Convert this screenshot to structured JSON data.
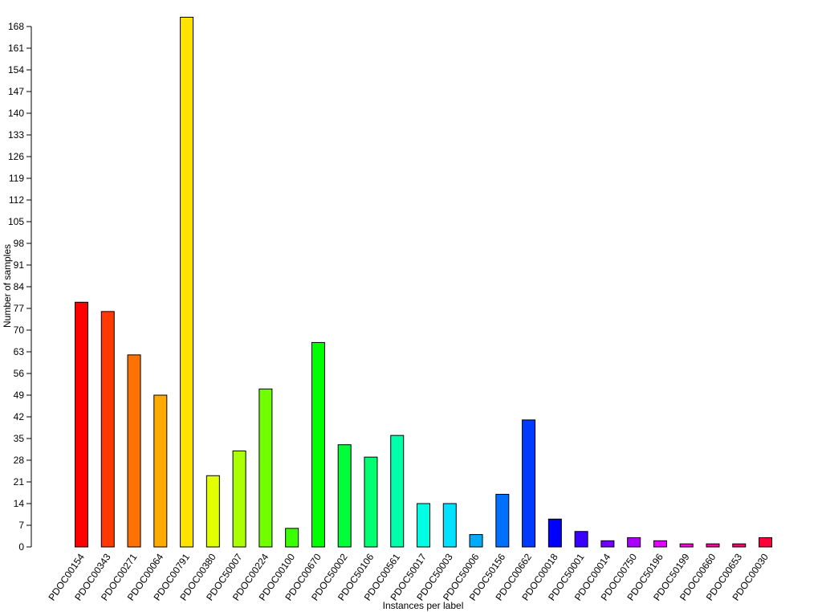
{
  "chart_data": {
    "type": "bar",
    "title": "",
    "xlabel": "Instances per label",
    "ylabel": "Number of samples",
    "ylim": [
      0,
      170
    ],
    "yticks": [
      0,
      7,
      14,
      21,
      28,
      35,
      42,
      49,
      56,
      63,
      70,
      77,
      84,
      91,
      98,
      105,
      112,
      119,
      126,
      133,
      140,
      147,
      154,
      161,
      168
    ],
    "grid": false,
    "legend": "none",
    "categories": [
      "PDOC00154",
      "PDOC00343",
      "PDOC00271",
      "PDOC00064",
      "PDOC00791",
      "PDOC00380",
      "PDOC50007",
      "PDOC00224",
      "PDOC00100",
      "PDOC00670",
      "PDOC50002",
      "PDOC50106",
      "PDOC00561",
      "PDOC50017",
      "PDOC50003",
      "PDOC50006",
      "PDOC50156",
      "PDOC00662",
      "PDOC00018",
      "PDOC50001",
      "PDOC00014",
      "PDOC00750",
      "PDOC50196",
      "PDOC50199",
      "PDOC00660",
      "PDOC00653",
      "PDOC00030"
    ],
    "values": [
      79,
      76,
      62,
      49,
      171,
      23,
      31,
      51,
      6,
      66,
      33,
      29,
      36,
      14,
      14,
      4,
      17,
      41,
      9,
      5,
      2,
      3,
      2,
      1,
      1,
      1,
      3
    ],
    "colors": [
      "#FF0000",
      "#FF3900",
      "#FF7100",
      "#FFAA00",
      "#FFE200",
      "#E2FF00",
      "#AAFF00",
      "#71FF00",
      "#39FF00",
      "#00FF00",
      "#00FF39",
      "#00FF71",
      "#00FFAA",
      "#00FFE2",
      "#00E2FF",
      "#00AAFF",
      "#0071FF",
      "#0039FF",
      "#0000FF",
      "#3900FF",
      "#7100FF",
      "#AA00FF",
      "#E200FF",
      "#FF00E2",
      "#FF00AA",
      "#FF0071",
      "#FF0039"
    ]
  }
}
